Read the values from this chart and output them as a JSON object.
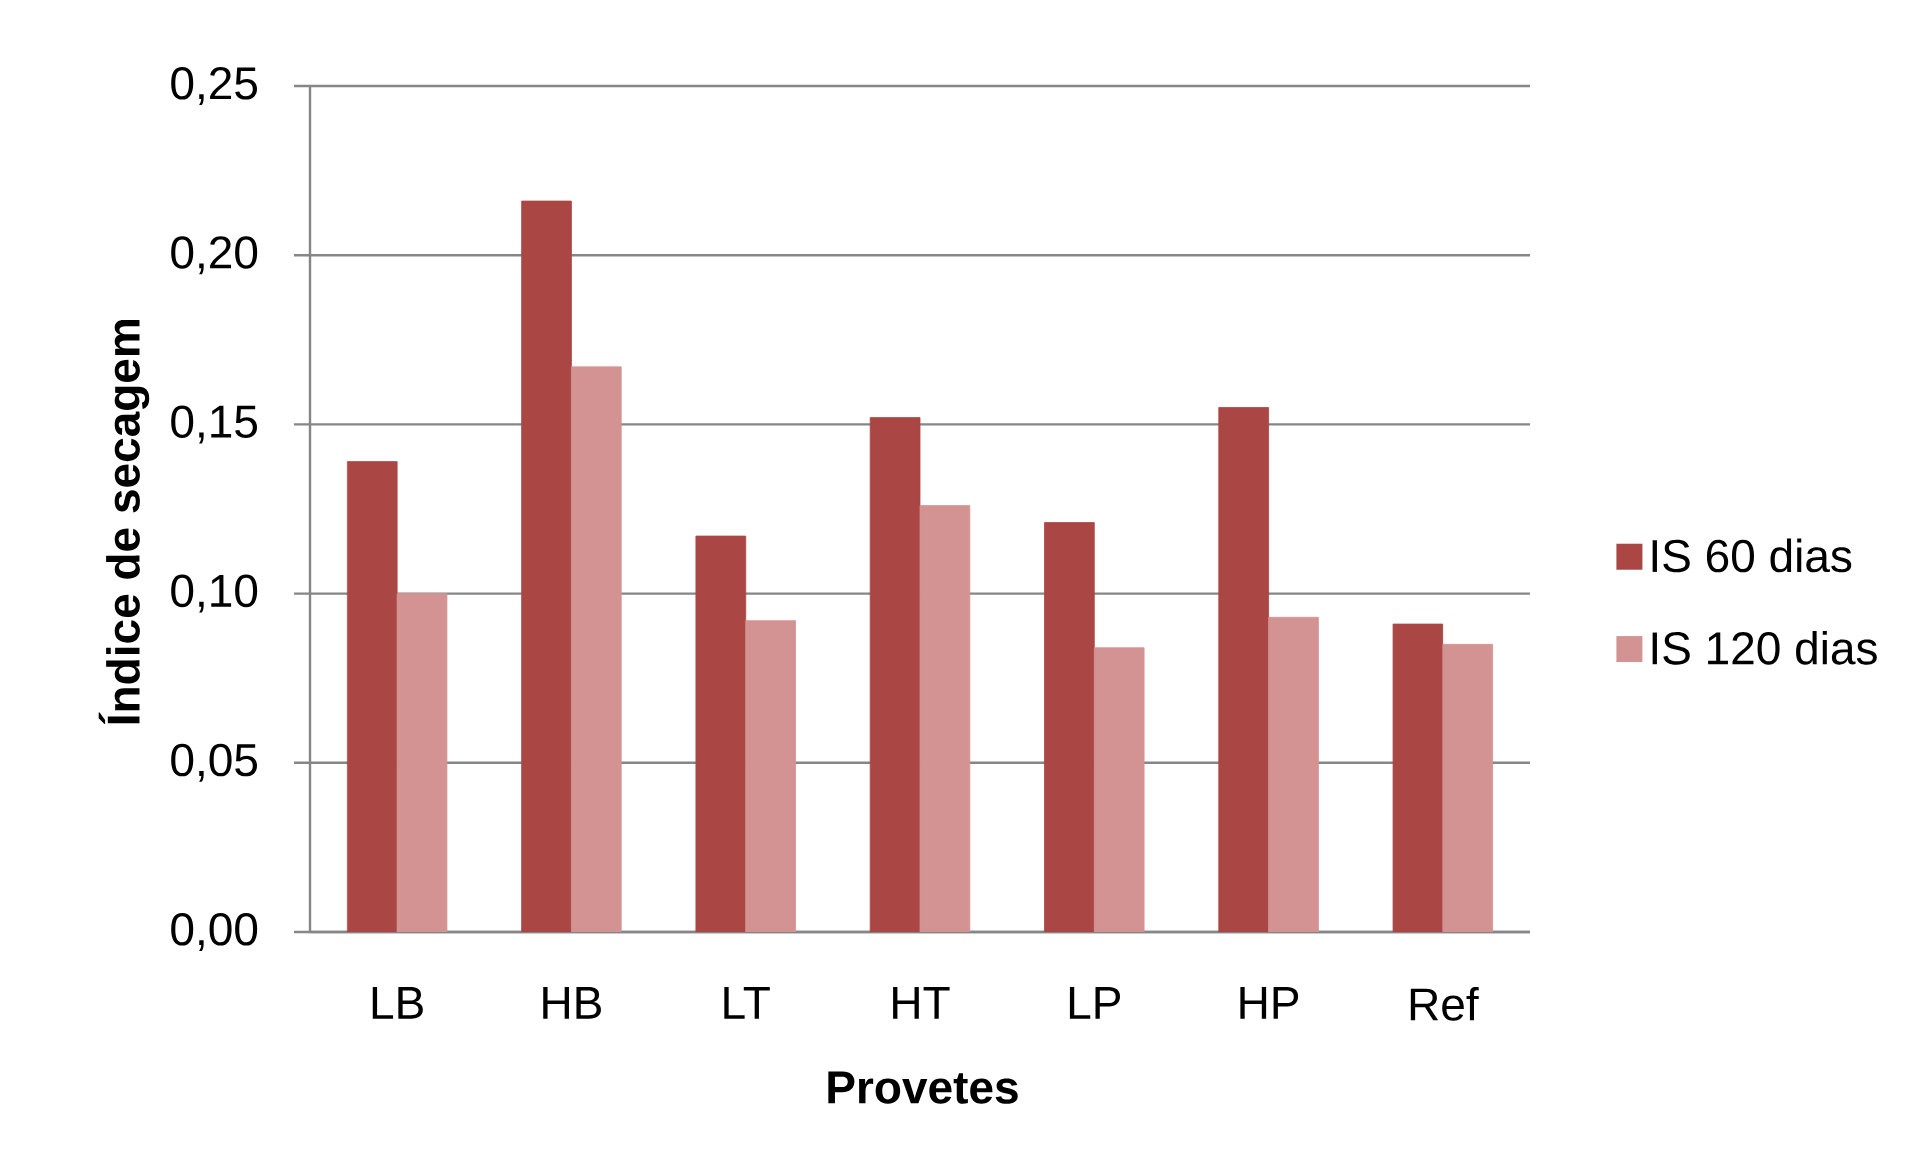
{
  "chart_data": {
    "type": "bar",
    "xlabel": "Provetes",
    "ylabel": "Índice de secagem",
    "categories": [
      "LB",
      "HB",
      "LT",
      "HT",
      "LP",
      "HP",
      "Ref"
    ],
    "series": [
      {
        "name": "IS 60 dias",
        "color": "#aa4643",
        "values": [
          0.139,
          0.216,
          0.117,
          0.152,
          0.121,
          0.155,
          0.091
        ]
      },
      {
        "name": "IS 120 dias",
        "color": "#d39392",
        "values": [
          0.1,
          0.167,
          0.092,
          0.126,
          0.084,
          0.093,
          0.085
        ]
      }
    ],
    "ylim": [
      0,
      0.25
    ],
    "yticks": [
      {
        "value": 0,
        "label": "0,00"
      },
      {
        "value": 0.05,
        "label": "0,05"
      },
      {
        "value": 0.1,
        "label": "0,10"
      },
      {
        "value": 0.15,
        "label": "0,15"
      },
      {
        "value": 0.2,
        "label": "0,20"
      },
      {
        "value": 0.25,
        "label": "0,25"
      }
    ],
    "grid": "y",
    "legend": "right"
  }
}
